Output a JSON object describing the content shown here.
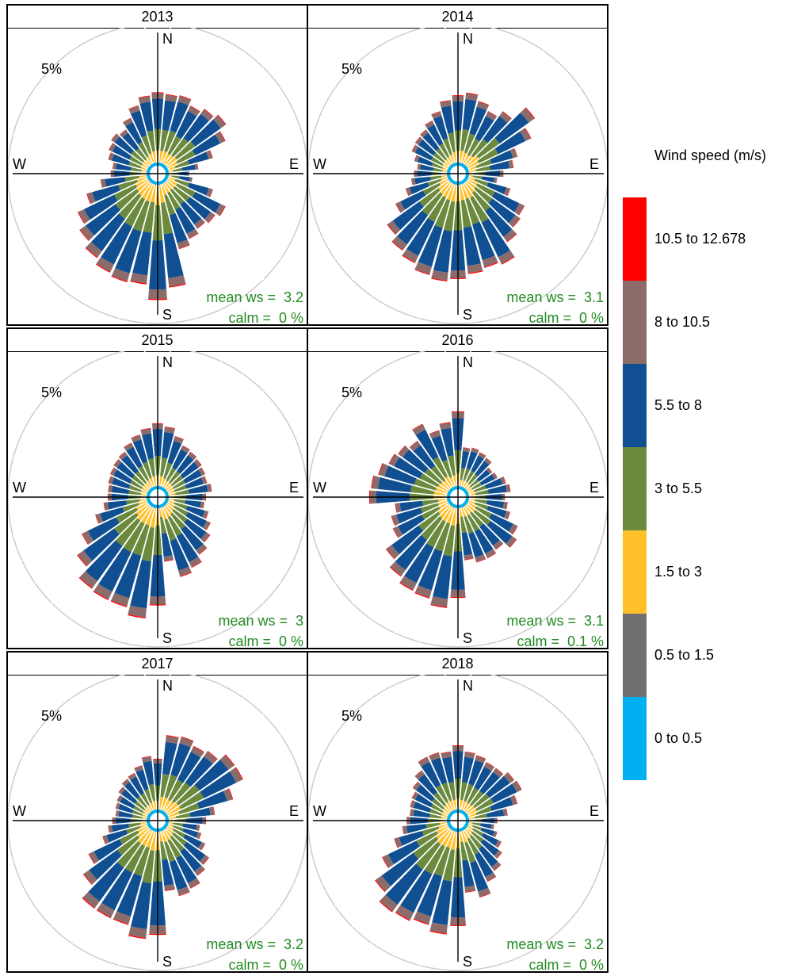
{
  "chart_data": {
    "type": "windrose",
    "legend": {
      "title": "Wind speed (m/s)",
      "bins": [
        {
          "label": "10.5 to 12.678",
          "color": "#ff0000"
        },
        {
          "label": "8 to 10.5",
          "color": "#8c6b6b"
        },
        {
          "label": "5.5 to 8",
          "color": "#0f4f92"
        },
        {
          "label": "3 to 5.5",
          "color": "#6b8a3e"
        },
        {
          "label": "1.5 to 3",
          "color": "#ffc02a"
        },
        {
          "label": "0.5 to 1.5",
          "color": "#707070"
        },
        {
          "label": "0 to 0.5",
          "color": "#00b0f0"
        }
      ]
    },
    "axis": {
      "ring_label": "5%",
      "ring_max_percent": 5,
      "directions": [
        "N",
        "E",
        "S",
        "W"
      ],
      "sectors": 36,
      "sector_width_deg": 10
    },
    "panels": [
      {
        "title": "2013",
        "mean_ws_label": "mean ws =  3.2",
        "calm_label": "calm =  0 %",
        "totals": [
          2.4,
          2.35,
          2.4,
          2.2,
          2.35,
          2.5,
          2.2,
          1.6,
          1.05,
          0.75,
          0.85,
          1.6,
          2.2,
          2.05,
          1.95,
          2.1,
          2.3,
          3.5,
          3.9,
          3.4,
          3.45,
          3.35,
          3.15,
          2.9,
          2.65,
          2.15,
          1.6,
          1.25,
          1.2,
          1.4,
          1.5,
          1.6,
          1.5,
          1.75,
          2.05,
          2.3
        ]
      },
      {
        "title": "2014",
        "mean_ws_label": "mean ws =  3.1",
        "calm_label": "calm =  0 %",
        "totals": [
          2.3,
          2.4,
          2.2,
          2.0,
          2.25,
          2.85,
          2.4,
          1.75,
          1.55,
          1.2,
          1.0,
          1.5,
          2.15,
          2.25,
          2.5,
          3.05,
          2.95,
          3.05,
          3.2,
          3.3,
          3.2,
          3.0,
          2.85,
          2.6,
          2.0,
          1.5,
          1.25,
          1.15,
          1.05,
          1.2,
          1.4,
          1.45,
          1.5,
          1.65,
          1.85,
          2.15
        ]
      },
      {
        "title": "2015",
        "mean_ws_label": "mean ws =  3",
        "calm_label": "calm =  0 %",
        "totals": [
          2.15,
          2.05,
          1.8,
          1.6,
          1.55,
          1.5,
          1.45,
          1.4,
          1.5,
          1.3,
          1.25,
          1.45,
          1.65,
          1.85,
          2.05,
          2.3,
          2.45,
          1.85,
          3.3,
          3.75,
          3.5,
          3.5,
          3.45,
          3.0,
          2.5,
          1.85,
          1.5,
          1.35,
          1.35,
          1.4,
          1.45,
          1.5,
          1.55,
          1.7,
          1.85,
          2.0
        ]
      },
      {
        "title": "2016",
        "mean_ws_label": "mean ws =  3.1",
        "calm_label": "calm =  0.1 %",
        "totals": [
          2.55,
          1.35,
          1.4,
          1.35,
          1.3,
          1.1,
          1.15,
          1.35,
          1.45,
          1.25,
          1.35,
          1.5,
          1.9,
          2.1,
          1.85,
          1.95,
          1.95,
          1.8,
          3.05,
          3.4,
          3.2,
          3.15,
          2.95,
          2.65,
          2.1,
          2.0,
          1.8,
          2.65,
          2.6,
          2.45,
          2.25,
          2.15,
          2.0,
          2.4,
          2.0,
          2.2
        ]
      },
      {
        "title": "2017",
        "mean_ws_label": "mean ws =  3.2",
        "calm_label": "calm =  0 %",
        "totals": [
          1.75,
          2.55,
          2.6,
          2.45,
          2.55,
          2.85,
          2.85,
          2.3,
          1.6,
          1.3,
          1.1,
          1.2,
          1.45,
          1.8,
          1.95,
          2.2,
          2.3,
          2.05,
          3.5,
          3.65,
          3.3,
          3.3,
          3.3,
          2.75,
          2.25,
          1.6,
          1.35,
          1.2,
          1.1,
          1.15,
          1.2,
          1.3,
          1.4,
          1.45,
          1.6,
          1.85
        ]
      },
      {
        "title": "2018",
        "mean_ws_label": "mean ws =  3.2",
        "calm_label": "calm =  0 %",
        "totals": [
          2.2,
          2.0,
          1.95,
          1.85,
          1.85,
          2.0,
          2.05,
          1.75,
          1.35,
          1.0,
          0.9,
          1.05,
          1.3,
          1.5,
          1.75,
          1.95,
          2.35,
          2.1,
          3.2,
          3.5,
          3.3,
          3.4,
          3.45,
          3.1,
          2.5,
          1.9,
          1.55,
          1.4,
          1.3,
          1.35,
          1.4,
          1.55,
          1.75,
          2.05,
          2.05,
          2.0
        ]
      }
    ],
    "bin_share": [
      0.02,
      0.17,
      0.3,
      0.42,
      0.08,
      0.01
    ]
  }
}
